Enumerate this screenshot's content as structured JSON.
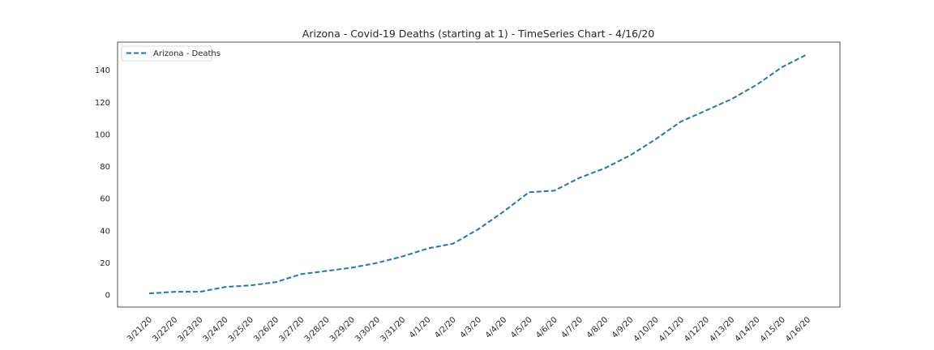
{
  "chart_data": {
    "type": "line",
    "title": "Arizona - Covid-19 Deaths (starting at 1) - TimeSeries Chart - 4/16/20",
    "xlabel": "",
    "ylabel": "",
    "x": [
      "3/21/20",
      "3/22/20",
      "3/23/20",
      "3/24/20",
      "3/25/20",
      "3/26/20",
      "3/27/20",
      "3/28/20",
      "3/29/20",
      "3/30/20",
      "3/31/20",
      "4/1/20",
      "4/2/20",
      "4/3/20",
      "4/4/20",
      "4/5/20",
      "4/6/20",
      "4/7/20",
      "4/8/20",
      "4/9/20",
      "4/10/20",
      "4/11/20",
      "4/12/20",
      "4/13/20",
      "4/14/20",
      "4/15/20",
      "4/16/20"
    ],
    "series": [
      {
        "name": "Arizona - Deaths",
        "color": "#1f77b4",
        "line_style": "dashed",
        "values": [
          1,
          2,
          2,
          5,
          6,
          8,
          13,
          15,
          17,
          20,
          24,
          29,
          32,
          41,
          52,
          64,
          65,
          73,
          79,
          87,
          97,
          108,
          115,
          122,
          131,
          142,
          150
        ]
      }
    ],
    "ylim": [
      -7.5,
      157.5
    ],
    "yticks": [
      0,
      20,
      40,
      60,
      80,
      100,
      120,
      140
    ],
    "grid": false,
    "legend_position": "upper-left"
  }
}
